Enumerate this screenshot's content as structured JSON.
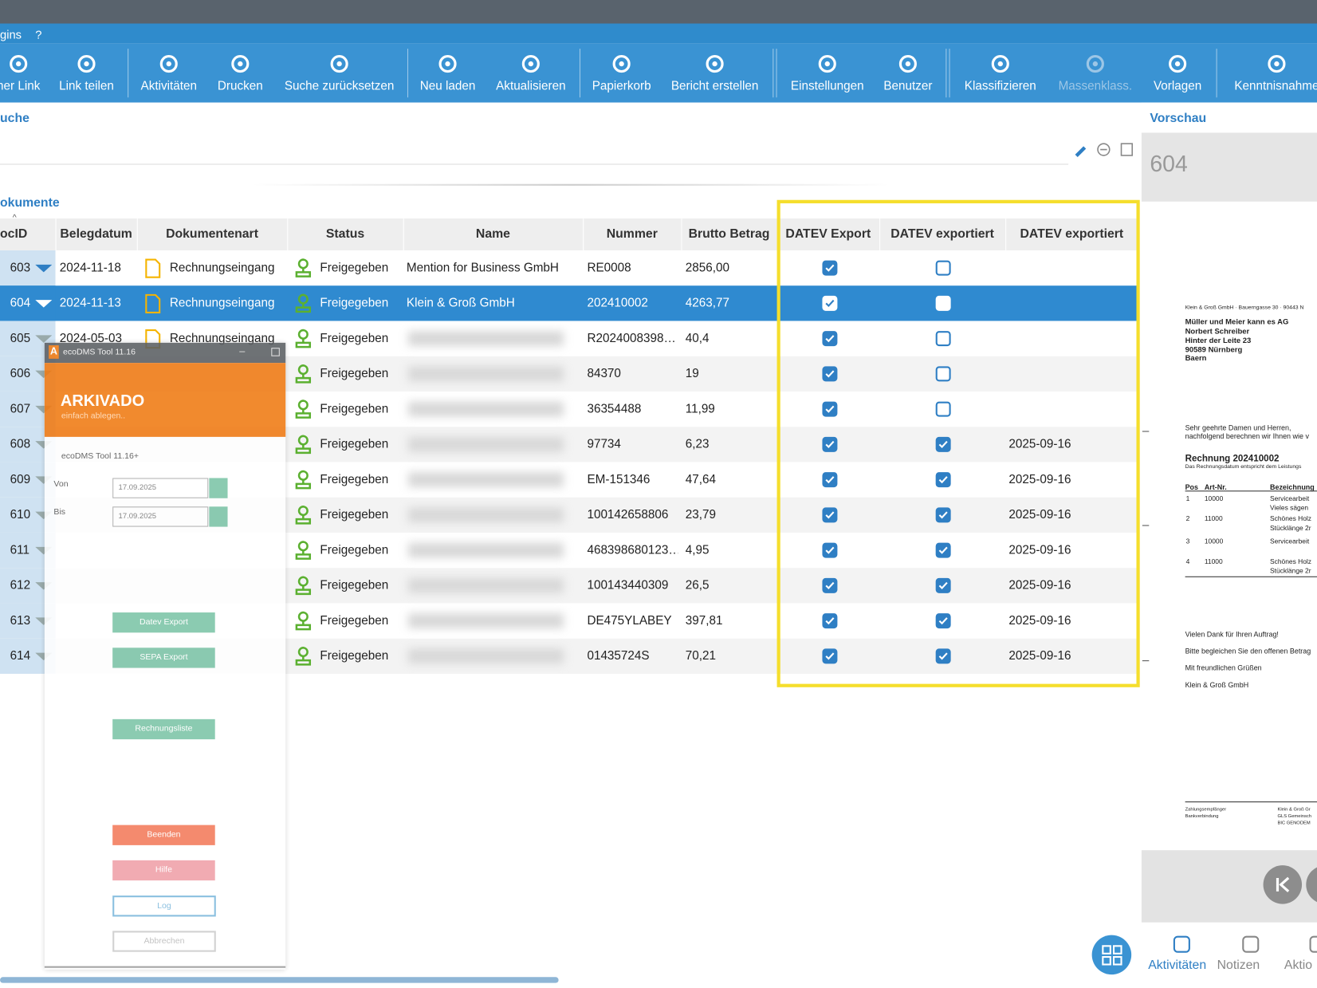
{
  "top_menu": {
    "items": [
      "gins",
      "?"
    ]
  },
  "toolbar": [
    {
      "label": "ner Link"
    },
    {
      "label": "Link teilen"
    },
    {
      "label": "Aktivitäten"
    },
    {
      "label": "Drucken"
    },
    {
      "label": "Suche zurücksetzen"
    },
    {
      "label": "Neu laden"
    },
    {
      "label": "Aktualisieren"
    },
    {
      "label": "Papierkorb"
    },
    {
      "label": "Bericht erstellen"
    },
    {
      "label": "Einstellungen"
    },
    {
      "label": "Benutzer"
    },
    {
      "label": "Klassifizieren"
    },
    {
      "label": "Massenklass.",
      "disabled": true
    },
    {
      "label": "Vorlagen"
    },
    {
      "label": "Kenntnisnahme"
    }
  ],
  "search": {
    "title": "uche"
  },
  "documents": {
    "title": "okumente",
    "columns": [
      "ocID",
      "Belegdatum",
      "Dokumentenart",
      "Status",
      "Name",
      "Nummer",
      "Brutto Betrag",
      "DATEV Export",
      "DATEV exportiert",
      "DATEV exportiert"
    ],
    "rows": [
      {
        "id": "603",
        "date": "2024-11-18",
        "doctype": "Rechnungseingang",
        "status": "Freigegeben",
        "name": "Mention for Business GmbH",
        "number": "RE0008",
        "gross": "2856,00",
        "datev_export": true,
        "datev_exported": false,
        "exported_date": null
      },
      {
        "id": "604",
        "date": "2024-11-13",
        "doctype": "Rechnungseingang",
        "status": "Freigegeben",
        "name": "Klein & Groß GmbH",
        "number": "202410002",
        "gross": "4263,77",
        "datev_export": true,
        "datev_exported": false,
        "exported_date": null,
        "selected": true
      },
      {
        "id": "605",
        "date": "2024-05-03",
        "doctype": "Rechnungseingang",
        "status": "Freigegeben",
        "name": null,
        "number": "R2024008398…",
        "gross": "40,4",
        "datev_export": true,
        "datev_exported": false,
        "exported_date": null
      },
      {
        "id": "606",
        "date": null,
        "doctype": null,
        "status": "Freigegeben",
        "name": null,
        "number": "84370",
        "gross": "19",
        "datev_export": true,
        "datev_exported": false,
        "exported_date": null
      },
      {
        "id": "607",
        "date": null,
        "doctype": null,
        "status": "Freigegeben",
        "name": null,
        "number": "36354488",
        "gross": "11,99",
        "datev_export": true,
        "datev_exported": false,
        "exported_date": null
      },
      {
        "id": "608",
        "date": null,
        "doctype": null,
        "status": "Freigegeben",
        "name": null,
        "number": "97734",
        "gross": "6,23",
        "datev_export": true,
        "datev_exported": true,
        "exported_date": "2025-09-16"
      },
      {
        "id": "609",
        "date": null,
        "doctype": null,
        "status": "Freigegeben",
        "name": null,
        "number": "EM-151346",
        "gross": "47,64",
        "datev_export": true,
        "datev_exported": true,
        "exported_date": "2025-09-16"
      },
      {
        "id": "610",
        "date": null,
        "doctype": null,
        "status": "Freigegeben",
        "name": null,
        "number": "100142658806",
        "gross": "23,79",
        "datev_export": true,
        "datev_exported": true,
        "exported_date": "2025-09-16"
      },
      {
        "id": "611",
        "date": null,
        "doctype": null,
        "status": "Freigegeben",
        "name": null,
        "number": "468398680123…",
        "gross": "4,95",
        "datev_export": true,
        "datev_exported": true,
        "exported_date": "2025-09-16"
      },
      {
        "id": "612",
        "date": null,
        "doctype": null,
        "status": "Freigegeben",
        "name": null,
        "number": "100143440309",
        "gross": "26,5",
        "datev_export": true,
        "datev_exported": true,
        "exported_date": "2025-09-16"
      },
      {
        "id": "613",
        "date": null,
        "doctype": null,
        "status": "Freigegeben",
        "name": null,
        "number": "DE475YLABEY",
        "gross": "397,81",
        "datev_export": true,
        "datev_exported": true,
        "exported_date": "2025-09-16"
      },
      {
        "id": "614",
        "date": null,
        "doctype": null,
        "status": "Freigegeben",
        "name": null,
        "number": "01435724S",
        "gross": "70,21",
        "datev_export": true,
        "datev_exported": true,
        "exported_date": "2025-09-16"
      }
    ]
  },
  "dialog": {
    "title": "ecoDMS Tool 11.16",
    "brand": "ARKIVADO",
    "tagline": "einfach ablegen..",
    "version": "ecoDMS Tool 11.16+",
    "from_label": "Von",
    "from": "17.09.2025",
    "to_label": "Bis",
    "to": "17.09.2025",
    "buttons": [
      "Datev Export",
      "SEPA Export",
      "Rechnungsliste",
      "Beenden",
      "Hilfe",
      "Log",
      "Abbrechen"
    ]
  },
  "preview": {
    "title": "Vorschau",
    "doc_id": "604",
    "lines": [
      "Klein & Groß GmbH · Bauerngasse 30 · 90443 N",
      "Müller und Meier kann es AG",
      "Norbert Schreiber",
      "Hinter der Leite 23",
      "90589 Nürnberg",
      "Baern",
      "Sehr geehrte Damen und Herren,",
      "nachfolgend berechnen wir Ihnen wie v",
      "Rechnung 202410002",
      "Das Rechnungsdatum entspricht dem Leistungs",
      "Pos",
      "Art-Nr.",
      "Bezeichnung",
      "1",
      "10000",
      "Servicearbeit",
      "Vieles sägen",
      "2",
      "11000",
      "Schönes Holz",
      "Stücklänge 2r",
      "3",
      "10000",
      "Servicearbeit",
      "4",
      "11000",
      "Schönes Holz",
      "Stücklänge 2r",
      "Vielen Dank für Ihren Auftrag!",
      "Bitte begleichen Sie den offenen Betrag",
      "Mit freundlichen Grüßen",
      "Klein & Groß GmbH",
      "Zahlungsempfänger",
      "Bankverbindung",
      "Klein & Groß Gr",
      "GLS Gemeinsch",
      "BIC GENODEM"
    ],
    "tabs": [
      "Aktivitäten",
      "Notizen",
      "Aktio"
    ]
  }
}
